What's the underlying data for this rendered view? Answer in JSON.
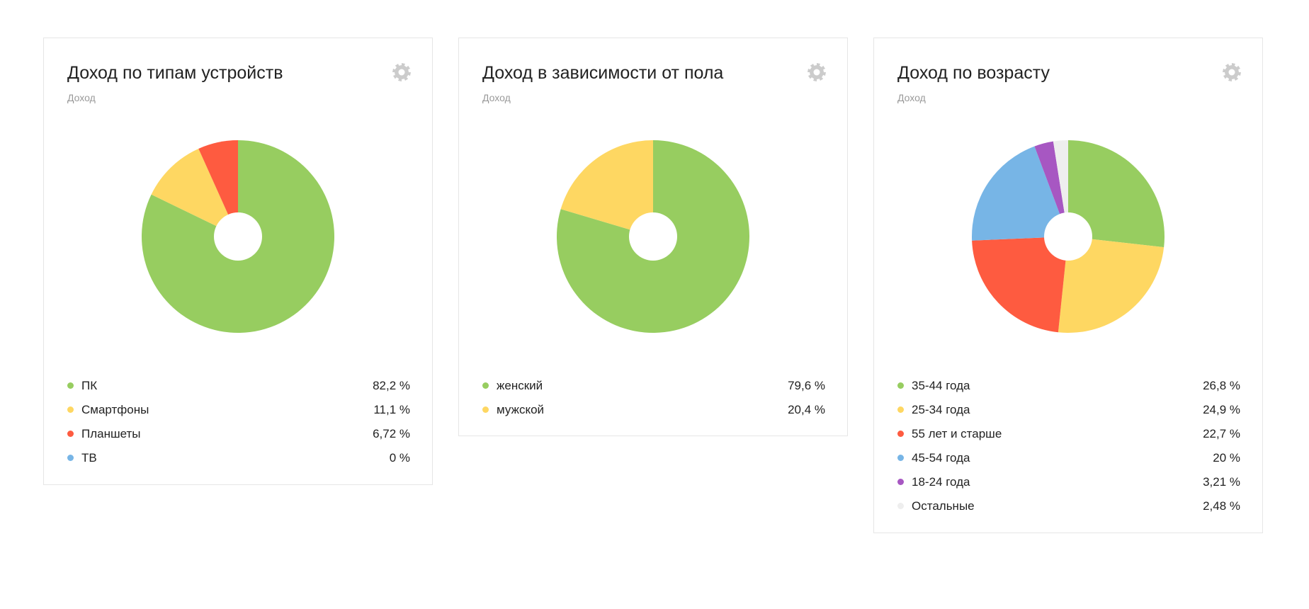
{
  "widgets": [
    {
      "title": "Доход по типам устройств",
      "subtitle": "Доход",
      "settings_icon": "gear-icon",
      "legend": [
        {
          "label": "ПК",
          "value_text": "82,2 %",
          "color": "#97cd60"
        },
        {
          "label": "Смартфоны",
          "value_text": "11,1 %",
          "color": "#fed762"
        },
        {
          "label": "Планшеты",
          "value_text": "6,72 %",
          "color": "#fe5b40"
        },
        {
          "label": "ТВ",
          "value_text": "0 %",
          "color": "#77b5e6"
        }
      ]
    },
    {
      "title": "Доход в зависимости от пола",
      "subtitle": "Доход",
      "settings_icon": "gear-icon",
      "legend": [
        {
          "label": "женский",
          "value_text": "79,6 %",
          "color": "#97cd60"
        },
        {
          "label": "мужской",
          "value_text": "20,4 %",
          "color": "#fed762"
        }
      ]
    },
    {
      "title": "Доход по возрасту",
      "subtitle": "Доход",
      "settings_icon": "gear-icon",
      "legend": [
        {
          "label": "35-44 года",
          "value_text": "26,8 %",
          "color": "#97cd60"
        },
        {
          "label": "25-34 года",
          "value_text": "24,9 %",
          "color": "#fed762"
        },
        {
          "label": "55 лет и старше",
          "value_text": "22,7 %",
          "color": "#fe5b40"
        },
        {
          "label": "45-54 года",
          "value_text": "20 %",
          "color": "#77b5e6"
        },
        {
          "label": "18-24 года",
          "value_text": "3,21 %",
          "color": "#a757c2"
        },
        {
          "label": "Остальные",
          "value_text": "2,48 %",
          "color": "#eeeeee"
        }
      ]
    }
  ],
  "chart_data": [
    {
      "type": "pie",
      "title": "Доход по типам устройств",
      "subtitle": "Доход",
      "categories": [
        "ПК",
        "Смартфоны",
        "Планшеты",
        "ТВ"
      ],
      "values": [
        82.2,
        11.1,
        6.72,
        0
      ],
      "colors": [
        "#97cd60",
        "#fed762",
        "#fe5b40",
        "#77b5e6"
      ],
      "donut": true,
      "legend": "bottom"
    },
    {
      "type": "pie",
      "title": "Доход в зависимости от пола",
      "subtitle": "Доход",
      "categories": [
        "женский",
        "мужской"
      ],
      "values": [
        79.6,
        20.4
      ],
      "colors": [
        "#97cd60",
        "#fed762"
      ],
      "donut": true,
      "legend": "bottom"
    },
    {
      "type": "pie",
      "title": "Доход по возрасту",
      "subtitle": "Доход",
      "categories": [
        "35-44 года",
        "25-34 года",
        "55 лет и старше",
        "45-54 года",
        "18-24 года",
        "Остальные"
      ],
      "values": [
        26.8,
        24.9,
        22.7,
        20,
        3.21,
        2.48
      ],
      "colors": [
        "#97cd60",
        "#fed762",
        "#fe5b40",
        "#77b5e6",
        "#a757c2",
        "#eeeeee"
      ],
      "donut": true,
      "legend": "bottom"
    }
  ]
}
